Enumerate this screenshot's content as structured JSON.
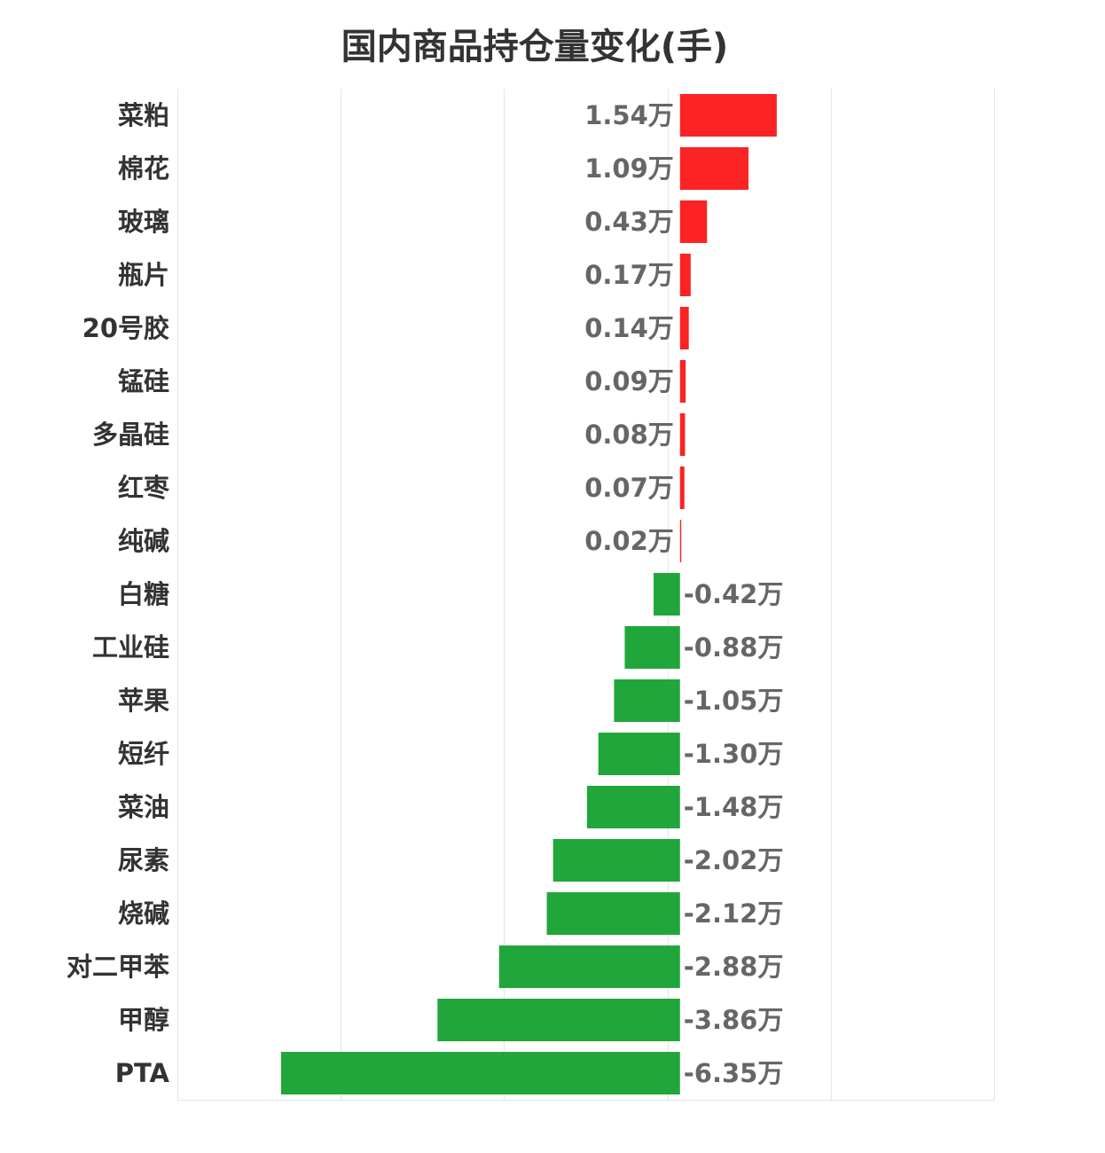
{
  "chart_data": {
    "type": "bar",
    "orientation": "horizontal",
    "title": "国内商品持仓量变化(手)",
    "unit": "万",
    "xlabel": "",
    "ylabel": "",
    "xlim": [
      -8,
      5
    ],
    "grid": true,
    "legend": "none",
    "colors": {
      "positive": "#fb2323",
      "negative": "#21a63c",
      "grid": "#e5e5e5"
    },
    "categories": [
      "菜粕",
      "棉花",
      "玻璃",
      "瓶片",
      "20号胶",
      "锰硅",
      "多晶硅",
      "红枣",
      "纯碱",
      "白糖",
      "工业硅",
      "苹果",
      "短纤",
      "菜油",
      "尿素",
      "烧碱",
      "对二甲苯",
      "甲醇",
      "PTA"
    ],
    "values": [
      1.54,
      1.09,
      0.43,
      0.17,
      0.14,
      0.09,
      0.08,
      0.07,
      0.02,
      -0.42,
      -0.88,
      -1.05,
      -1.3,
      -1.48,
      -2.02,
      -2.12,
      -2.88,
      -3.86,
      -6.35
    ],
    "data_labels": [
      "1.54万",
      "1.09万",
      "0.43万",
      "0.17万",
      "0.14万",
      "0.09万",
      "0.08万",
      "0.07万",
      "0.02万",
      "-0.42万",
      "-0.88万",
      "-1.05万",
      "-1.30万",
      "-1.48万",
      "-2.02万",
      "-2.12万",
      "-2.88万",
      "-3.86万",
      "-6.35万"
    ]
  }
}
